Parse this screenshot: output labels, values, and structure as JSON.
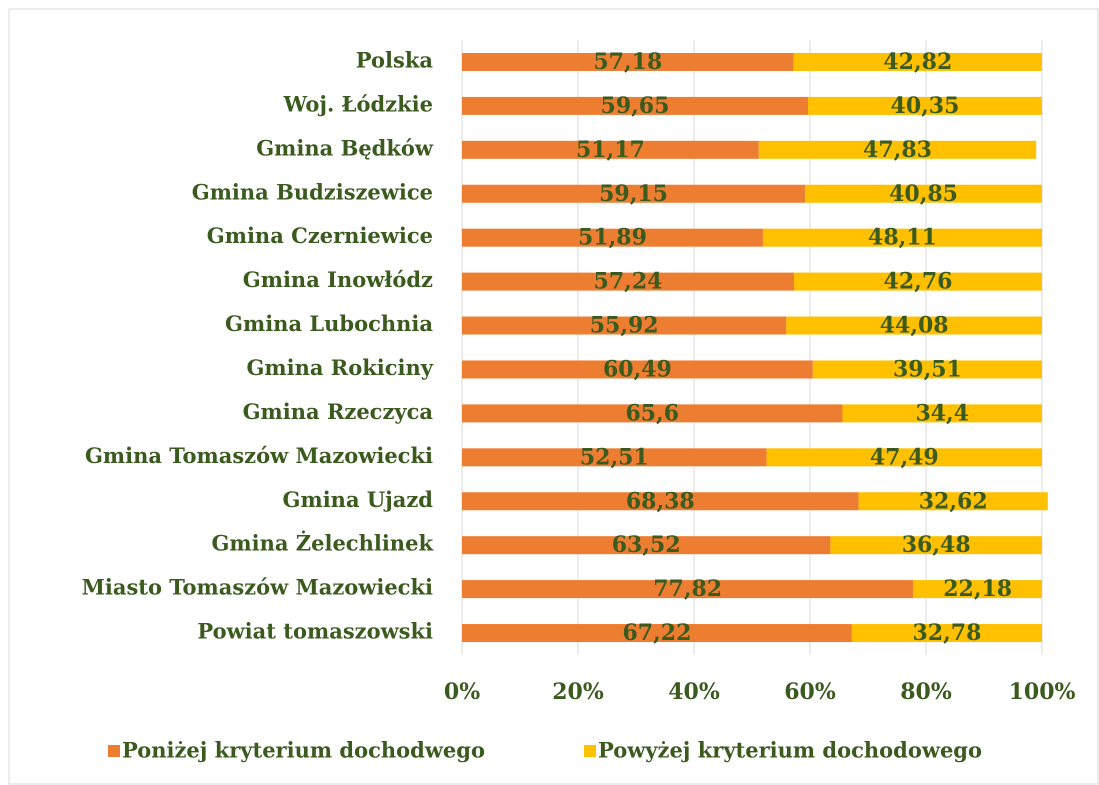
{
  "chart_data": {
    "type": "bar",
    "orientation": "horizontal",
    "stacked": true,
    "categories": [
      "Polska",
      "Woj. Łódzkie",
      "Gmina Będków",
      "Gmina Budziszewice",
      "Gmina Czerniewice",
      "Gmina Inowłódz",
      "Gmina Lubochnia",
      "Gmina Rokiciny",
      "Gmina Rzeczyca",
      "Gmina Tomaszów Mazowiecki",
      "Gmina Ujazd",
      "Gmina Żelechlinek",
      "Miasto Tomaszów Mazowiecki",
      "Powiat tomaszowski"
    ],
    "series": [
      {
        "name": "Poniżej kryterium dochodwego",
        "color": "#ed7d31",
        "values": [
          57.18,
          59.65,
          51.17,
          59.15,
          51.89,
          57.24,
          55.92,
          60.49,
          65.6,
          52.51,
          68.38,
          63.52,
          77.82,
          67.22
        ],
        "value_labels": [
          "57,18",
          "59,65",
          "51,17",
          "59,15",
          "51,89",
          "57,24",
          "55,92",
          "60,49",
          "65,6",
          "52,51",
          "68,38",
          "63,52",
          "77,82",
          "67,22"
        ]
      },
      {
        "name": "Powyżej kryterium dochodowego",
        "color": "#ffc000",
        "values": [
          42.82,
          40.35,
          47.83,
          40.85,
          48.11,
          42.76,
          44.08,
          39.51,
          34.4,
          47.49,
          32.62,
          36.48,
          22.18,
          32.78
        ],
        "value_labels": [
          "42,82",
          "40,35",
          "47,83",
          "40,85",
          "48,11",
          "42,76",
          "44,08",
          "39,51",
          "34,4",
          "47,49",
          "32,62",
          "36,48",
          "22,18",
          "32,78"
        ]
      }
    ],
    "xlim": [
      0,
      100
    ],
    "xticks": [
      {
        "value": 0,
        "label": "0%"
      },
      {
        "value": 20,
        "label": "20%"
      },
      {
        "value": 40,
        "label": "40%"
      },
      {
        "value": 60,
        "label": "60%"
      },
      {
        "value": 80,
        "label": "80%"
      },
      {
        "value": 100,
        "label": "100%"
      }
    ],
    "grid": true,
    "legend": "bottom"
  }
}
